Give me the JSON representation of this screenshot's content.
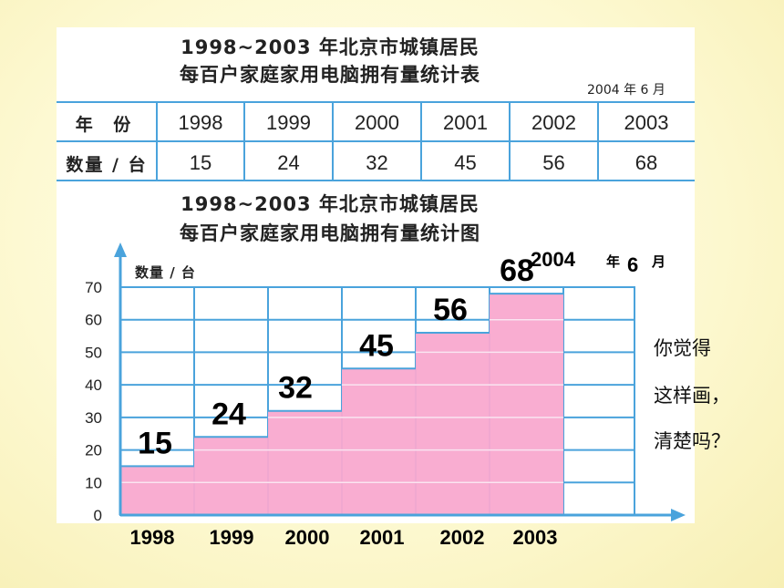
{
  "table": {
    "title_line1": "1998~2003 年北京市城镇居民",
    "title_line2": "每百户家庭家用电脑拥有量统计表",
    "date": "2004 年 6 月",
    "row_header_year": "年 份",
    "row_header_count": "数量 / 台",
    "years": [
      "1998",
      "1999",
      "2000",
      "2001",
      "2002",
      "2003"
    ],
    "counts": [
      "15",
      "24",
      "32",
      "45",
      "56",
      "68"
    ]
  },
  "chart_title_line1": "1998~2003 年北京市城镇居民",
  "chart_title_line2": "每百户家庭家用电脑拥有量统计图",
  "chart_date_year": "2004",
  "chart_date_year_char": "年",
  "chart_date_month": "6",
  "chart_date_month_char": "月",
  "colors": {
    "bar": "#f9a9cf",
    "grid": "#4aa3dc",
    "axis": "#4aa3dc",
    "text": "#000000"
  },
  "side_note": [
    "你觉得",
    "这样画，",
    "清楚吗？"
  ],
  "chart_data": {
    "type": "bar",
    "title": "1998~2003 年北京市城镇居民每百户家庭家用电脑拥有量统计图",
    "xlabel": "",
    "ylabel": "数量 / 台",
    "categories": [
      "1998",
      "1999",
      "2000",
      "2001",
      "2002",
      "2003"
    ],
    "values": [
      15,
      24,
      32,
      45,
      56,
      68
    ],
    "y_ticks": [
      0,
      10,
      20,
      30,
      40,
      50,
      60,
      70
    ],
    "ylim": [
      0,
      70
    ],
    "grid": true
  }
}
